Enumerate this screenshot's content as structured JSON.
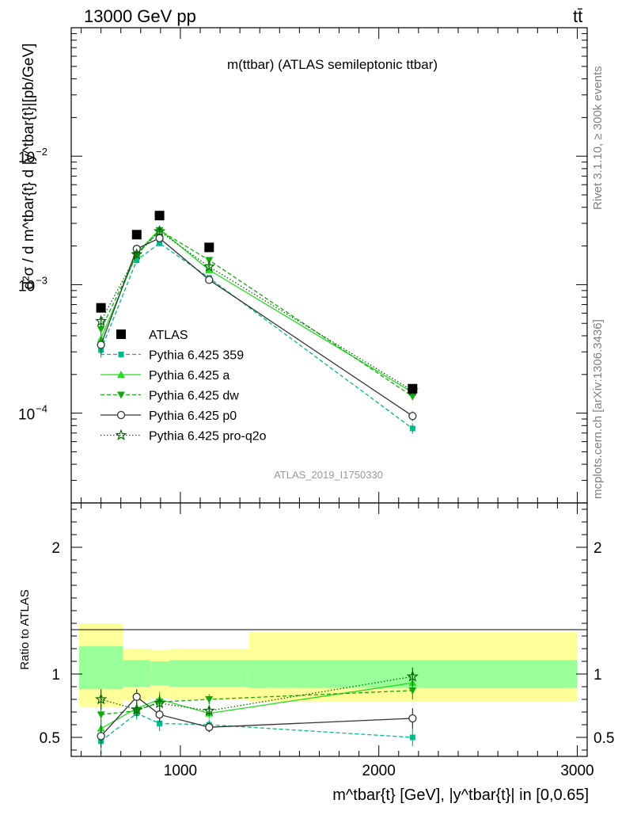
{
  "header": {
    "left": "13000 GeV pp",
    "right": "tt̄"
  },
  "side_labels": {
    "rivet": "Rivet 3.1.10, ≥ 300k events",
    "mcplots": "mcplots.cern.ch [arXiv:1306.3436]"
  },
  "colors": {
    "atlas": "#000000",
    "p359": "#00b88a",
    "pa": "#22dd22",
    "pdw": "#11aa11",
    "pp0": "#333333",
    "pq2o": "#006600",
    "band_yellow": "#ffff99",
    "band_green": "#99ff99"
  },
  "chart_data": [
    {
      "type": "line",
      "title": "m(ttbar) (ATLAS semileptonic ttbar)",
      "ylabel": "d²σ / d m^tbar{t} d |y^tbar{t}|[pb/GeV]",
      "xlabel": "m^tbar{t} [GeV], |y^tbar{t}| in [0,0.65]",
      "watermark": "ATLAS_2019_I1750330",
      "yscale": "log",
      "xlim": [
        450,
        3050
      ],
      "ylim": [
        2e-05,
        0.1
      ],
      "yticks": [
        {
          "value": 0.0001,
          "base": "10",
          "exp": "−4"
        },
        {
          "value": 0.001,
          "base": "10",
          "exp": "−3"
        },
        {
          "value": 0.01,
          "base": "10",
          "exp": "−2"
        }
      ],
      "legend_position": "center-left",
      "series": [
        {
          "name": "ATLAS",
          "key": "atlas",
          "marker": "square",
          "dash": "none",
          "x": [
            600,
            780,
            895,
            1145,
            2170
          ],
          "y": [
            0.00066,
            0.00245,
            0.00345,
            0.00195,
            0.000155
          ],
          "yerr": [
            0,
            0,
            0,
            0,
            0
          ]
        },
        {
          "name": "Pythia 6.425 359",
          "key": "p359",
          "marker": "smallsquare",
          "dash": "5,3",
          "x": [
            600,
            780,
            895,
            1145,
            2170
          ],
          "y": [
            0.00031,
            0.00155,
            0.0021,
            0.00113,
            7.6e-05
          ],
          "yerr": [
            4e-05,
            9e-05,
            0.00012,
            5e-05,
            7e-06
          ]
        },
        {
          "name": "Pythia 6.425 a",
          "key": "pa",
          "marker": "triangle-up",
          "dash": "none",
          "x": [
            600,
            780,
            895,
            1145,
            2170
          ],
          "y": [
            0.00038,
            0.00175,
            0.0027,
            0.0013,
            0.000145
          ],
          "yerr": [
            4e-05,
            0.0001,
            0.00013,
            6e-05,
            9e-06
          ]
        },
        {
          "name": "Pythia 6.425 dw",
          "key": "pdw",
          "marker": "triangle-down",
          "dash": "5,3",
          "x": [
            600,
            780,
            895,
            1145,
            2170
          ],
          "y": [
            0.00045,
            0.0017,
            0.00265,
            0.00155,
            0.000135
          ],
          "yerr": [
            5e-05,
            0.0001,
            0.00013,
            7e-05,
            9e-06
          ]
        },
        {
          "name": "Pythia 6.425 p0",
          "key": "pp0",
          "marker": "circle-open",
          "dash": "none",
          "x": [
            600,
            780,
            895,
            1145,
            2170
          ],
          "y": [
            0.00034,
            0.0019,
            0.0023,
            0.00109,
            9.5e-05
          ],
          "yerr": [
            5e-05,
            0.00011,
            0.00012,
            5e-05,
            8e-06
          ]
        },
        {
          "name": "Pythia 6.425 pro-q2o",
          "key": "pq2o",
          "marker": "star-open",
          "dash": "1.5,2.5",
          "x": [
            600,
            780,
            895,
            1145,
            2170
          ],
          "y": [
            0.00052,
            0.00172,
            0.0026,
            0.00138,
            0.00015
          ],
          "yerr": [
            5e-05,
            0.0001,
            0.00013,
            6e-05,
            1e-05
          ]
        }
      ]
    },
    {
      "type": "line",
      "ylabel": "Ratio to ATLAS",
      "xlim": [
        450,
        3050
      ],
      "ylim": [
        0.35,
        2.35
      ],
      "yticks": [
        0.5,
        1,
        2
      ],
      "xticks": [
        1000,
        2000,
        3000
      ],
      "bins": [
        {
          "lo": 490,
          "hi": 710,
          "green": [
            0.88,
            1.22
          ],
          "yellow": [
            0.74,
            1.4
          ]
        },
        {
          "lo": 710,
          "hi": 850,
          "green": [
            0.9,
            1.11
          ],
          "yellow": [
            0.79,
            1.2
          ]
        },
        {
          "lo": 850,
          "hi": 945,
          "green": [
            0.91,
            1.1
          ],
          "yellow": [
            0.81,
            1.19
          ]
        },
        {
          "lo": 945,
          "hi": 1345,
          "green": [
            0.9,
            1.11
          ],
          "yellow": [
            0.8,
            1.2
          ]
        },
        {
          "lo": 1345,
          "hi": 3000,
          "green": [
            0.89,
            1.11
          ],
          "yellow": [
            0.78,
            1.33
          ]
        }
      ],
      "series": [
        {
          "key": "p359",
          "marker": "smallsquare",
          "dash": "5,3",
          "x": [
            600,
            780,
            895,
            1145,
            2170
          ],
          "y": [
            0.47,
            0.69,
            0.61,
            0.6,
            0.5
          ],
          "yerr": [
            0.1,
            0.05,
            0.06,
            0.04,
            0.07
          ]
        },
        {
          "key": "pa",
          "marker": "triangle-up",
          "dash": "none",
          "x": [
            600,
            780,
            895,
            1145,
            2170
          ],
          "y": [
            0.57,
            0.73,
            0.8,
            0.69,
            0.93
          ],
          "yerr": [
            0.08,
            0.05,
            0.06,
            0.04,
            0.07
          ]
        },
        {
          "key": "pdw",
          "marker": "triangle-down",
          "dash": "5,3",
          "x": [
            600,
            780,
            895,
            1145,
            2170
          ],
          "y": [
            0.68,
            0.71,
            0.78,
            0.8,
            0.87
          ],
          "yerr": [
            0.08,
            0.05,
            0.06,
            0.04,
            0.07
          ]
        },
        {
          "key": "pp0",
          "marker": "circle-open",
          "dash": "none",
          "x": [
            600,
            780,
            895,
            1145,
            2170
          ],
          "y": [
            0.51,
            0.82,
            0.68,
            0.58,
            0.65
          ],
          "yerr": [
            0.09,
            0.06,
            0.06,
            0.04,
            0.08
          ]
        },
        {
          "key": "pq2o",
          "marker": "star-open",
          "dash": "1.5,2.5",
          "x": [
            600,
            780,
            895,
            1145,
            2170
          ],
          "y": [
            0.8,
            0.72,
            0.77,
            0.71,
            0.98
          ],
          "yerr": [
            0.08,
            0.05,
            0.06,
            0.04,
            0.07
          ]
        }
      ]
    }
  ]
}
